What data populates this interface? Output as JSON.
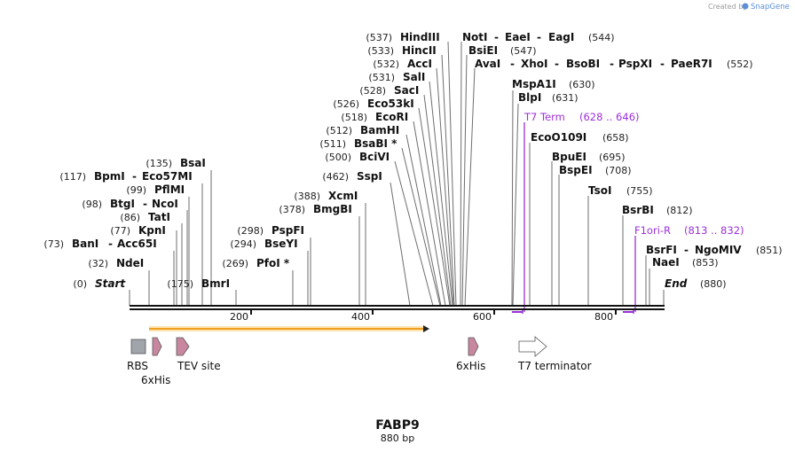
{
  "credit": {
    "text": "Created by",
    "brand": "SnapGene"
  },
  "title": "FABP9",
  "subtitle": "880 bp",
  "colors": {
    "orf": "#f0a020",
    "rbs": "#a0a4ab",
    "his": "#c9879f",
    "tev": "#c9879f",
    "primer": "#9b30d9",
    "terminator": "#ffffff"
  },
  "ruler": {
    "ticks": [
      "200",
      "400",
      "600",
      "800"
    ]
  },
  "sites": [
    {
      "pos": "(0)",
      "name": "Start",
      "italic": true
    },
    {
      "pos": "(32)",
      "name": "NdeI"
    },
    {
      "pos": "(73)",
      "name": "BanI",
      "dash": "-",
      "name2": "Acc65I"
    },
    {
      "pos": "(77)",
      "name": "KpnI"
    },
    {
      "pos": "(86)",
      "name": "TatI"
    },
    {
      "pos": "(98)",
      "name": "BtgI",
      "dash": "-",
      "name2": "NcoI"
    },
    {
      "pos": "(99)",
      "name": "PflMI"
    },
    {
      "pos": "(117)",
      "name": "BpmI",
      "dash": "-",
      "name2": "Eco57MI"
    },
    {
      "pos": "(135)",
      "name": "BsaI"
    },
    {
      "pos": "(175)",
      "name": "BmrI"
    },
    {
      "pos": "(269)",
      "name": "PfoI *"
    },
    {
      "pos": "(294)",
      "name": "BseYI"
    },
    {
      "pos": "(298)",
      "name": "PspFI"
    },
    {
      "pos": "(378)",
      "name": "BmgBI"
    },
    {
      "pos": "(388)",
      "name": "XcmI"
    },
    {
      "pos": "(462)",
      "name": "SspI"
    },
    {
      "pos": "(500)",
      "name": "BciVI"
    },
    {
      "pos": "(511)",
      "name": "BsaBI *"
    },
    {
      "pos": "(512)",
      "name": "BamHI"
    },
    {
      "pos": "(518)",
      "name": "EcoRI"
    },
    {
      "pos": "(526)",
      "name": "Eco53kI"
    },
    {
      "pos": "(528)",
      "name": "SacI"
    },
    {
      "pos": "(531)",
      "name": "SalI"
    },
    {
      "pos": "(532)",
      "name": "AccI"
    },
    {
      "pos": "(533)",
      "name": "HincII"
    },
    {
      "pos": "(537)",
      "name": "HindIII"
    },
    {
      "name": "NotI",
      "dash": "-",
      "name2": "EaeI",
      "dash2": "-",
      "name3": "EagI",
      "pos": "(544)"
    },
    {
      "name": "BsiEI",
      "pos": "(547)"
    },
    {
      "name": "AvaI",
      "dash": "-",
      "name2": "XhoI",
      "dash2": "-",
      "name3": "BsoBI",
      "dash3": "-",
      "name4": "PspXI",
      "dash4": "-",
      "name5": "PaeR7I",
      "pos": "(552)"
    },
    {
      "name": "MspA1I",
      "pos": "(630)"
    },
    {
      "name": "BlpI",
      "pos": "(631)"
    },
    {
      "name": "EcoO109I",
      "pos": "(658)"
    },
    {
      "name": "BpuEI",
      "pos": "(695)"
    },
    {
      "name": "BspEI",
      "pos": "(708)"
    },
    {
      "name": "TsoI",
      "pos": "(755)"
    },
    {
      "name": "BsrBI",
      "pos": "(812)"
    },
    {
      "name": "BsrFI",
      "dash": "-",
      "name2": "NgoMIV",
      "pos": "(851)"
    },
    {
      "name": "NaeI",
      "pos": "(853)"
    },
    {
      "name": "End",
      "italic": true,
      "pos": "(880)"
    }
  ],
  "primers": [
    {
      "name": "T7 Term",
      "range": "(628 .. 646)"
    },
    {
      "name": "F1ori-R",
      "range": "(813 .. 832)"
    }
  ],
  "features": {
    "rbs": "RBS",
    "his1": "6xHis",
    "tev": "TEV site",
    "his2": "6xHis",
    "t7": "T7 terminator"
  }
}
